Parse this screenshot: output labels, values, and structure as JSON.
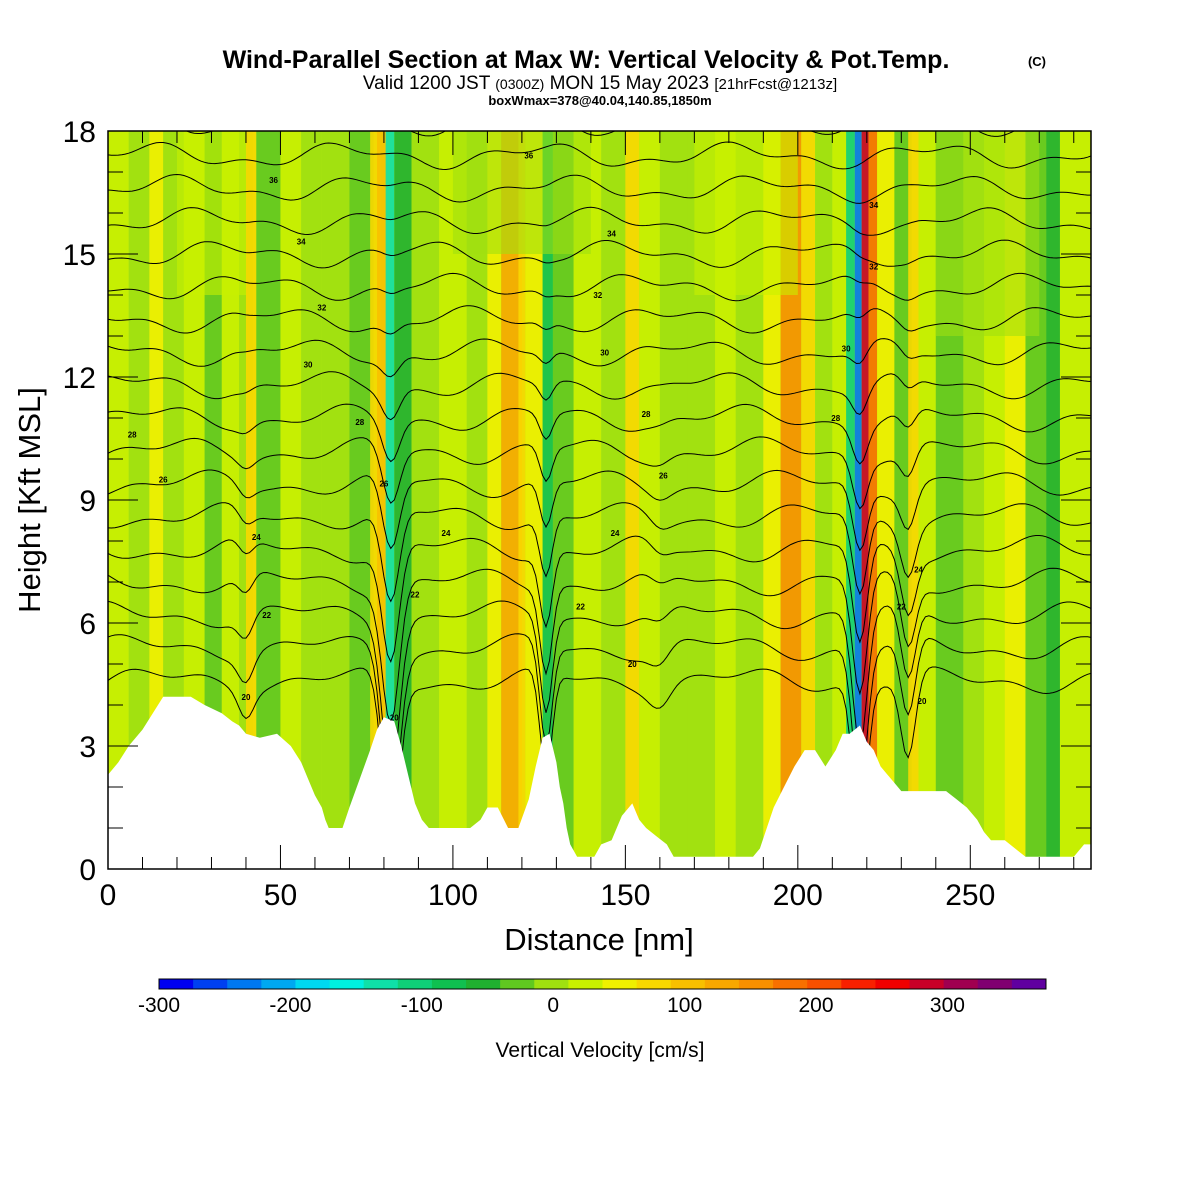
{
  "chart_data": {
    "type": "heatmap",
    "title": "Wind-Parallel Section at Max W: Vertical Velocity & Pot.Temp.",
    "title_unit": "(C)",
    "subtitle": {
      "prefix": "Valid 1200 JST",
      "utc": "(0300Z)",
      "date": "MON 15 May 2023",
      "fcst": "[21hrFcst@1213z]"
    },
    "subtitle2": "boxWmax=378@40.04,140.85,1850m",
    "xlabel": "Distance [nm]",
    "ylabel": "Height [Kft MSL]",
    "xlim": [
      0,
      285
    ],
    "ylim": [
      0,
      18
    ],
    "x_ticks": [
      0,
      50,
      100,
      150,
      200,
      250
    ],
    "y_ticks": [
      0,
      3,
      6,
      9,
      12,
      15,
      18
    ],
    "colorbar": {
      "label": "Vertical Velocity [cm/s]",
      "range": [
        -300,
        375
      ],
      "step": 25,
      "tick_values": [
        -300,
        -200,
        -100,
        0,
        100,
        200,
        300
      ],
      "tick_labels": [
        "-300",
        "-200",
        "-100",
        "0",
        "100",
        "200",
        "300"
      ],
      "colors": [
        "#0000f0",
        "#0040f0",
        "#0078f0",
        "#00a8f0",
        "#00d8f0",
        "#00f0e0",
        "#10e0a8",
        "#10d078",
        "#10c050",
        "#20b030",
        "#60c820",
        "#a0e010",
        "#c8f000",
        "#f0f000",
        "#f8d800",
        "#f8c000",
        "#f8a800",
        "#f89000",
        "#f87000",
        "#f85000",
        "#f82000",
        "#f00000",
        "#c80028",
        "#a00050",
        "#800070",
        "#6000a0"
      ]
    },
    "theta_contours": {
      "levels": [
        20,
        21,
        22,
        23,
        24,
        25,
        26,
        27,
        28,
        29,
        30,
        31,
        32,
        33,
        34,
        35,
        36,
        37,
        38
      ],
      "base_heights_kft": [
        4.6,
        5.4,
        6.2,
        7.0,
        7.8,
        8.6,
        9.4,
        10.2,
        11.0,
        11.8,
        12.6,
        13.4,
        14.2,
        15.0,
        15.8,
        16.6,
        17.4,
        18.2,
        19.0
      ],
      "labels": [
        {
          "x": 83,
          "y": 3.7,
          "text": "20"
        },
        {
          "x": 152,
          "y": 5.0,
          "text": "20"
        },
        {
          "x": 236,
          "y": 4.1,
          "text": "20"
        },
        {
          "x": 40,
          "y": 4.2,
          "text": "20"
        },
        {
          "x": 46,
          "y": 6.2,
          "text": "22"
        },
        {
          "x": 89,
          "y": 6.7,
          "text": "22"
        },
        {
          "x": 137,
          "y": 6.4,
          "text": "22"
        },
        {
          "x": 230,
          "y": 6.4,
          "text": "22"
        },
        {
          "x": 43,
          "y": 8.1,
          "text": "24"
        },
        {
          "x": 98,
          "y": 8.2,
          "text": "24"
        },
        {
          "x": 147,
          "y": 8.2,
          "text": "24"
        },
        {
          "x": 235,
          "y": 7.3,
          "text": "24"
        },
        {
          "x": 16,
          "y": 9.5,
          "text": "26"
        },
        {
          "x": 80,
          "y": 9.4,
          "text": "26"
        },
        {
          "x": 161,
          "y": 9.6,
          "text": "26"
        },
        {
          "x": 7,
          "y": 10.6,
          "text": "28"
        },
        {
          "x": 73,
          "y": 10.9,
          "text": "28"
        },
        {
          "x": 156,
          "y": 11.1,
          "text": "28"
        },
        {
          "x": 211,
          "y": 11.0,
          "text": "28"
        },
        {
          "x": 58,
          "y": 12.3,
          "text": "30"
        },
        {
          "x": 144,
          "y": 12.6,
          "text": "30"
        },
        {
          "x": 214,
          "y": 12.7,
          "text": "30"
        },
        {
          "x": 62,
          "y": 13.7,
          "text": "32"
        },
        {
          "x": 142,
          "y": 14.0,
          "text": "32"
        },
        {
          "x": 222,
          "y": 14.7,
          "text": "32"
        },
        {
          "x": 56,
          "y": 15.3,
          "text": "34"
        },
        {
          "x": 146,
          "y": 15.5,
          "text": "34"
        },
        {
          "x": 222,
          "y": 16.2,
          "text": "34"
        },
        {
          "x": 48,
          "y": 16.8,
          "text": "36"
        },
        {
          "x": 122,
          "y": 17.4,
          "text": "36"
        }
      ]
    },
    "terrain_profile": [
      [
        0,
        2.3
      ],
      [
        3,
        2.6
      ],
      [
        6,
        3.0
      ],
      [
        10,
        3.4
      ],
      [
        13,
        3.8
      ],
      [
        16,
        4.2
      ],
      [
        24,
        4.2
      ],
      [
        28,
        4.0
      ],
      [
        33,
        3.8
      ],
      [
        36,
        3.6
      ],
      [
        38,
        3.5
      ],
      [
        40,
        3.3
      ],
      [
        44,
        3.2
      ],
      [
        49,
        3.3
      ],
      [
        53,
        3.0
      ],
      [
        56,
        2.6
      ],
      [
        58,
        2.2
      ],
      [
        60,
        1.8
      ],
      [
        62,
        1.5
      ],
      [
        63,
        1.2
      ],
      [
        64,
        1.0
      ],
      [
        68,
        1.0
      ],
      [
        70,
        1.5
      ],
      [
        73,
        2.2
      ],
      [
        76,
        2.9
      ],
      [
        78,
        3.4
      ],
      [
        80,
        3.7
      ],
      [
        83,
        3.6
      ],
      [
        85,
        3.0
      ],
      [
        87,
        2.3
      ],
      [
        89,
        1.6
      ],
      [
        91,
        1.2
      ],
      [
        93,
        1.0
      ],
      [
        105,
        1.0
      ],
      [
        108,
        1.2
      ],
      [
        110,
        1.5
      ],
      [
        113,
        1.5
      ],
      [
        116,
        1.0
      ],
      [
        119,
        1.0
      ],
      [
        122,
        1.7
      ],
      [
        124,
        2.5
      ],
      [
        126,
        3.2
      ],
      [
        128,
        3.3
      ],
      [
        130,
        2.6
      ],
      [
        131,
        2.0
      ],
      [
        132,
        1.6
      ],
      [
        133,
        1.0
      ],
      [
        134,
        0.6
      ],
      [
        136,
        0.3
      ],
      [
        141,
        0.3
      ],
      [
        143,
        0.6
      ],
      [
        146,
        0.7
      ],
      [
        149,
        1.3
      ],
      [
        152,
        1.6
      ],
      [
        154,
        1.2
      ],
      [
        156,
        1.0
      ],
      [
        159,
        0.8
      ],
      [
        162,
        0.6
      ],
      [
        164,
        0.3
      ],
      [
        187,
        0.3
      ],
      [
        189,
        0.5
      ],
      [
        191,
        1.0
      ],
      [
        193,
        1.5
      ],
      [
        196,
        2.0
      ],
      [
        199,
        2.5
      ],
      [
        202,
        2.9
      ],
      [
        205,
        2.9
      ],
      [
        208,
        2.5
      ],
      [
        211,
        2.9
      ],
      [
        213,
        3.3
      ],
      [
        215,
        3.3
      ],
      [
        218,
        3.5
      ],
      [
        220,
        3.1
      ],
      [
        222,
        2.9
      ],
      [
        224,
        2.5
      ],
      [
        226,
        2.3
      ],
      [
        228,
        2.1
      ],
      [
        230,
        1.9
      ],
      [
        243,
        1.9
      ],
      [
        246,
        1.7
      ],
      [
        249,
        1.5
      ],
      [
        252,
        1.2
      ],
      [
        254,
        0.9
      ],
      [
        256,
        0.7
      ],
      [
        260,
        0.7
      ],
      [
        263,
        0.5
      ],
      [
        266,
        0.3
      ],
      [
        280,
        0.3
      ],
      [
        283,
        0.6
      ],
      [
        285,
        0.6
      ]
    ]
  }
}
